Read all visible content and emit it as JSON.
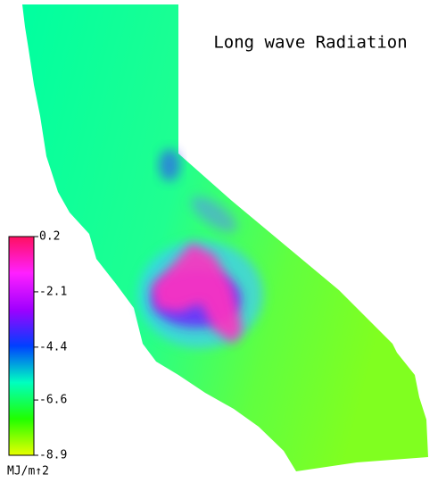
{
  "title": "Long wave Radiation",
  "colorbar": {
    "ticks": [
      0.2,
      -2.1,
      -4.4,
      -6.6,
      -8.9
    ],
    "range": [
      -8.9,
      0.2
    ],
    "unit": "MJ/m↑2",
    "colors": [
      "#e8ff00",
      "#20ff00",
      "#00ffc0",
      "#0040ff",
      "#a000ff",
      "#ff20ff",
      "#ff1060"
    ]
  }
}
